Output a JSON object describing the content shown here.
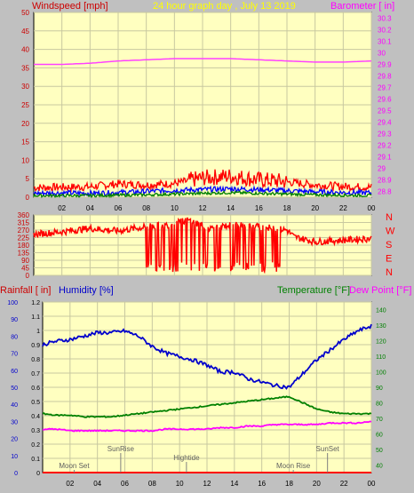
{
  "colors": {
    "bg": "#c0c0c0",
    "plot_bg": "#ffffc0",
    "grid": "#c8c8a0",
    "wind_title": "#cc0000",
    "center_title": "#ffff00",
    "baro_title": "#ff00ff",
    "barometer": "#ff40ff",
    "gust": "#ff0000",
    "wind_avg": "#0000ff",
    "wind_low": "#008000",
    "direction": "#ff0000",
    "dir_letters": "#ff0000",
    "rain": "#ff0000",
    "humidity": "#0000cc",
    "temperature": "#008000",
    "dewpoint": "#ff00ff",
    "events": "#808080"
  },
  "chart_data": [
    {
      "type": "line",
      "title": "24 hour graph day , July 13 2019",
      "left_axis_label": "Windspeed [mph]",
      "right_axis_label": "Barometer [ in]",
      "xlabel": "",
      "x_ticks": [
        "02",
        "04",
        "06",
        "08",
        "10",
        "12",
        "14",
        "16",
        "18",
        "20",
        "22",
        "00"
      ],
      "left_ticks": [
        "50",
        "45",
        "40",
        "35",
        "30",
        "25",
        "20",
        "15",
        "10",
        "5",
        "0"
      ],
      "right_ticks": [
        "30.3",
        "30.2",
        "30.1",
        "30",
        "29.9",
        "29.8",
        "29.7",
        "29.6",
        "29.5",
        "29.4",
        "29.3",
        "29.2",
        "29.1",
        "29",
        "28.9",
        "28.8"
      ],
      "ylim_left": [
        0,
        50
      ],
      "ylim_right": [
        28.75,
        30.35
      ],
      "x_hours": [
        0,
        2,
        4,
        6,
        8,
        10,
        12,
        14,
        16,
        18,
        20,
        22,
        24
      ],
      "series": [
        {
          "key": "barometer",
          "axis": "right",
          "values": [
            29.9,
            29.9,
            29.91,
            29.93,
            29.94,
            29.95,
            29.95,
            29.95,
            29.94,
            29.93,
            29.92,
            29.92,
            29.93
          ]
        },
        {
          "key": "gust",
          "axis": "left",
          "values": [
            2.5,
            2.6,
            2.7,
            3.5,
            3.2,
            3.6,
            5.0,
            5.5,
            4.5,
            4.0,
            3.2,
            2.8,
            2.6
          ]
        },
        {
          "key": "wind_avg",
          "axis": "left",
          "values": [
            1.0,
            1.1,
            1.0,
            1.2,
            1.5,
            1.8,
            2.0,
            2.2,
            2.0,
            1.7,
            1.4,
            1.2,
            1.1
          ]
        },
        {
          "key": "wind_low",
          "axis": "left",
          "values": [
            0.4,
            0.4,
            0.4,
            0.5,
            0.6,
            0.8,
            1.0,
            1.2,
            1.0,
            0.8,
            0.6,
            0.5,
            0.4
          ]
        }
      ]
    },
    {
      "type": "line",
      "left_ticks": [
        "360",
        "315",
        "270",
        "225",
        "180",
        "135",
        "90",
        "45",
        "0"
      ],
      "right_ticks": [
        "N",
        "W",
        "S",
        "E",
        "N"
      ],
      "ylim": [
        0,
        360
      ],
      "x_hours": [
        0,
        2,
        4,
        6,
        8,
        9.5,
        11,
        12.5,
        14,
        16,
        18,
        18.5,
        20,
        22,
        24
      ],
      "series": [
        {
          "key": "direction",
          "values": [
            245,
            260,
            280,
            265,
            290,
            300,
            330,
            280,
            300,
            290,
            270,
            230,
            200,
            210,
            220
          ]
        }
      ]
    },
    {
      "type": "line",
      "left_axis_label_1": "Rainfall [ in]",
      "left_axis_label_2": "Humidity [%]",
      "right_axis_label_1": "Temperature [°F]",
      "right_axis_label_2": "Dew Point [°F]",
      "x_ticks": [
        "02",
        "04",
        "06",
        "08",
        "10",
        "12",
        "14",
        "16",
        "18",
        "20",
        "22",
        "00"
      ],
      "humidity_ticks": [
        "100",
        "90",
        "80",
        "70",
        "60",
        "50",
        "40",
        "30",
        "20",
        "10",
        "0"
      ],
      "rain_ticks": [
        "1.2",
        "1.1",
        "1",
        "0.9",
        "0.8",
        "0.7",
        "0.6",
        "0.5",
        "0.4",
        "0.3",
        "0.2",
        "0.1",
        "0"
      ],
      "temp_ticks": [
        "140",
        "130",
        "120",
        "110",
        "100",
        "90",
        "80",
        "70",
        "60",
        "50",
        "40"
      ],
      "ylim_humidity": [
        0,
        100
      ],
      "ylim_rain": [
        0,
        1.2
      ],
      "ylim_temp": [
        35,
        145
      ],
      "x_hours": [
        0,
        1,
        2,
        3,
        4,
        5,
        6,
        7,
        8,
        9,
        10,
        11,
        12,
        13,
        14,
        15,
        16,
        17,
        18,
        19,
        20,
        21,
        22,
        23,
        24
      ],
      "series": [
        {
          "key": "humidity",
          "axis": "humidity",
          "values": [
            75,
            77,
            78,
            80,
            82,
            82,
            83,
            80,
            74,
            70,
            68,
            66,
            63,
            59,
            59,
            55,
            53,
            51,
            50,
            58,
            66,
            72,
            78,
            83,
            86
          ]
        },
        {
          "key": "temperature",
          "axis": "temp",
          "values": [
            73,
            72,
            72,
            71,
            71,
            71,
            72,
            73,
            74,
            75,
            76,
            77,
            78,
            79,
            80,
            81,
            82,
            83,
            84,
            80,
            76,
            74,
            73,
            73,
            73
          ]
        },
        {
          "key": "dewpoint",
          "axis": "temp",
          "values": [
            63,
            63,
            62,
            62,
            62,
            62,
            62,
            62,
            62,
            63,
            63,
            63,
            63,
            64,
            64,
            65,
            65,
            66,
            66,
            66,
            66,
            67,
            67,
            67,
            68
          ]
        },
        {
          "key": "rain",
          "axis": "rain",
          "values": [
            0,
            0,
            0,
            0,
            0,
            0,
            0,
            0,
            0,
            0,
            0,
            0,
            0,
            0,
            0,
            0,
            0,
            0,
            0,
            0,
            0,
            0,
            0,
            0,
            0
          ]
        }
      ],
      "events": [
        {
          "label": "SunRise",
          "hour": 5.7,
          "row": "upper"
        },
        {
          "label": "Moon Set",
          "hour": 2.3,
          "row": "lower"
        },
        {
          "label": "Hightide",
          "hour": 10.5,
          "row": "middle"
        },
        {
          "label": "SunSet",
          "hour": 20.8,
          "row": "upper"
        },
        {
          "label": "Moon Rise",
          "hour": 18.3,
          "row": "lower"
        }
      ]
    }
  ]
}
